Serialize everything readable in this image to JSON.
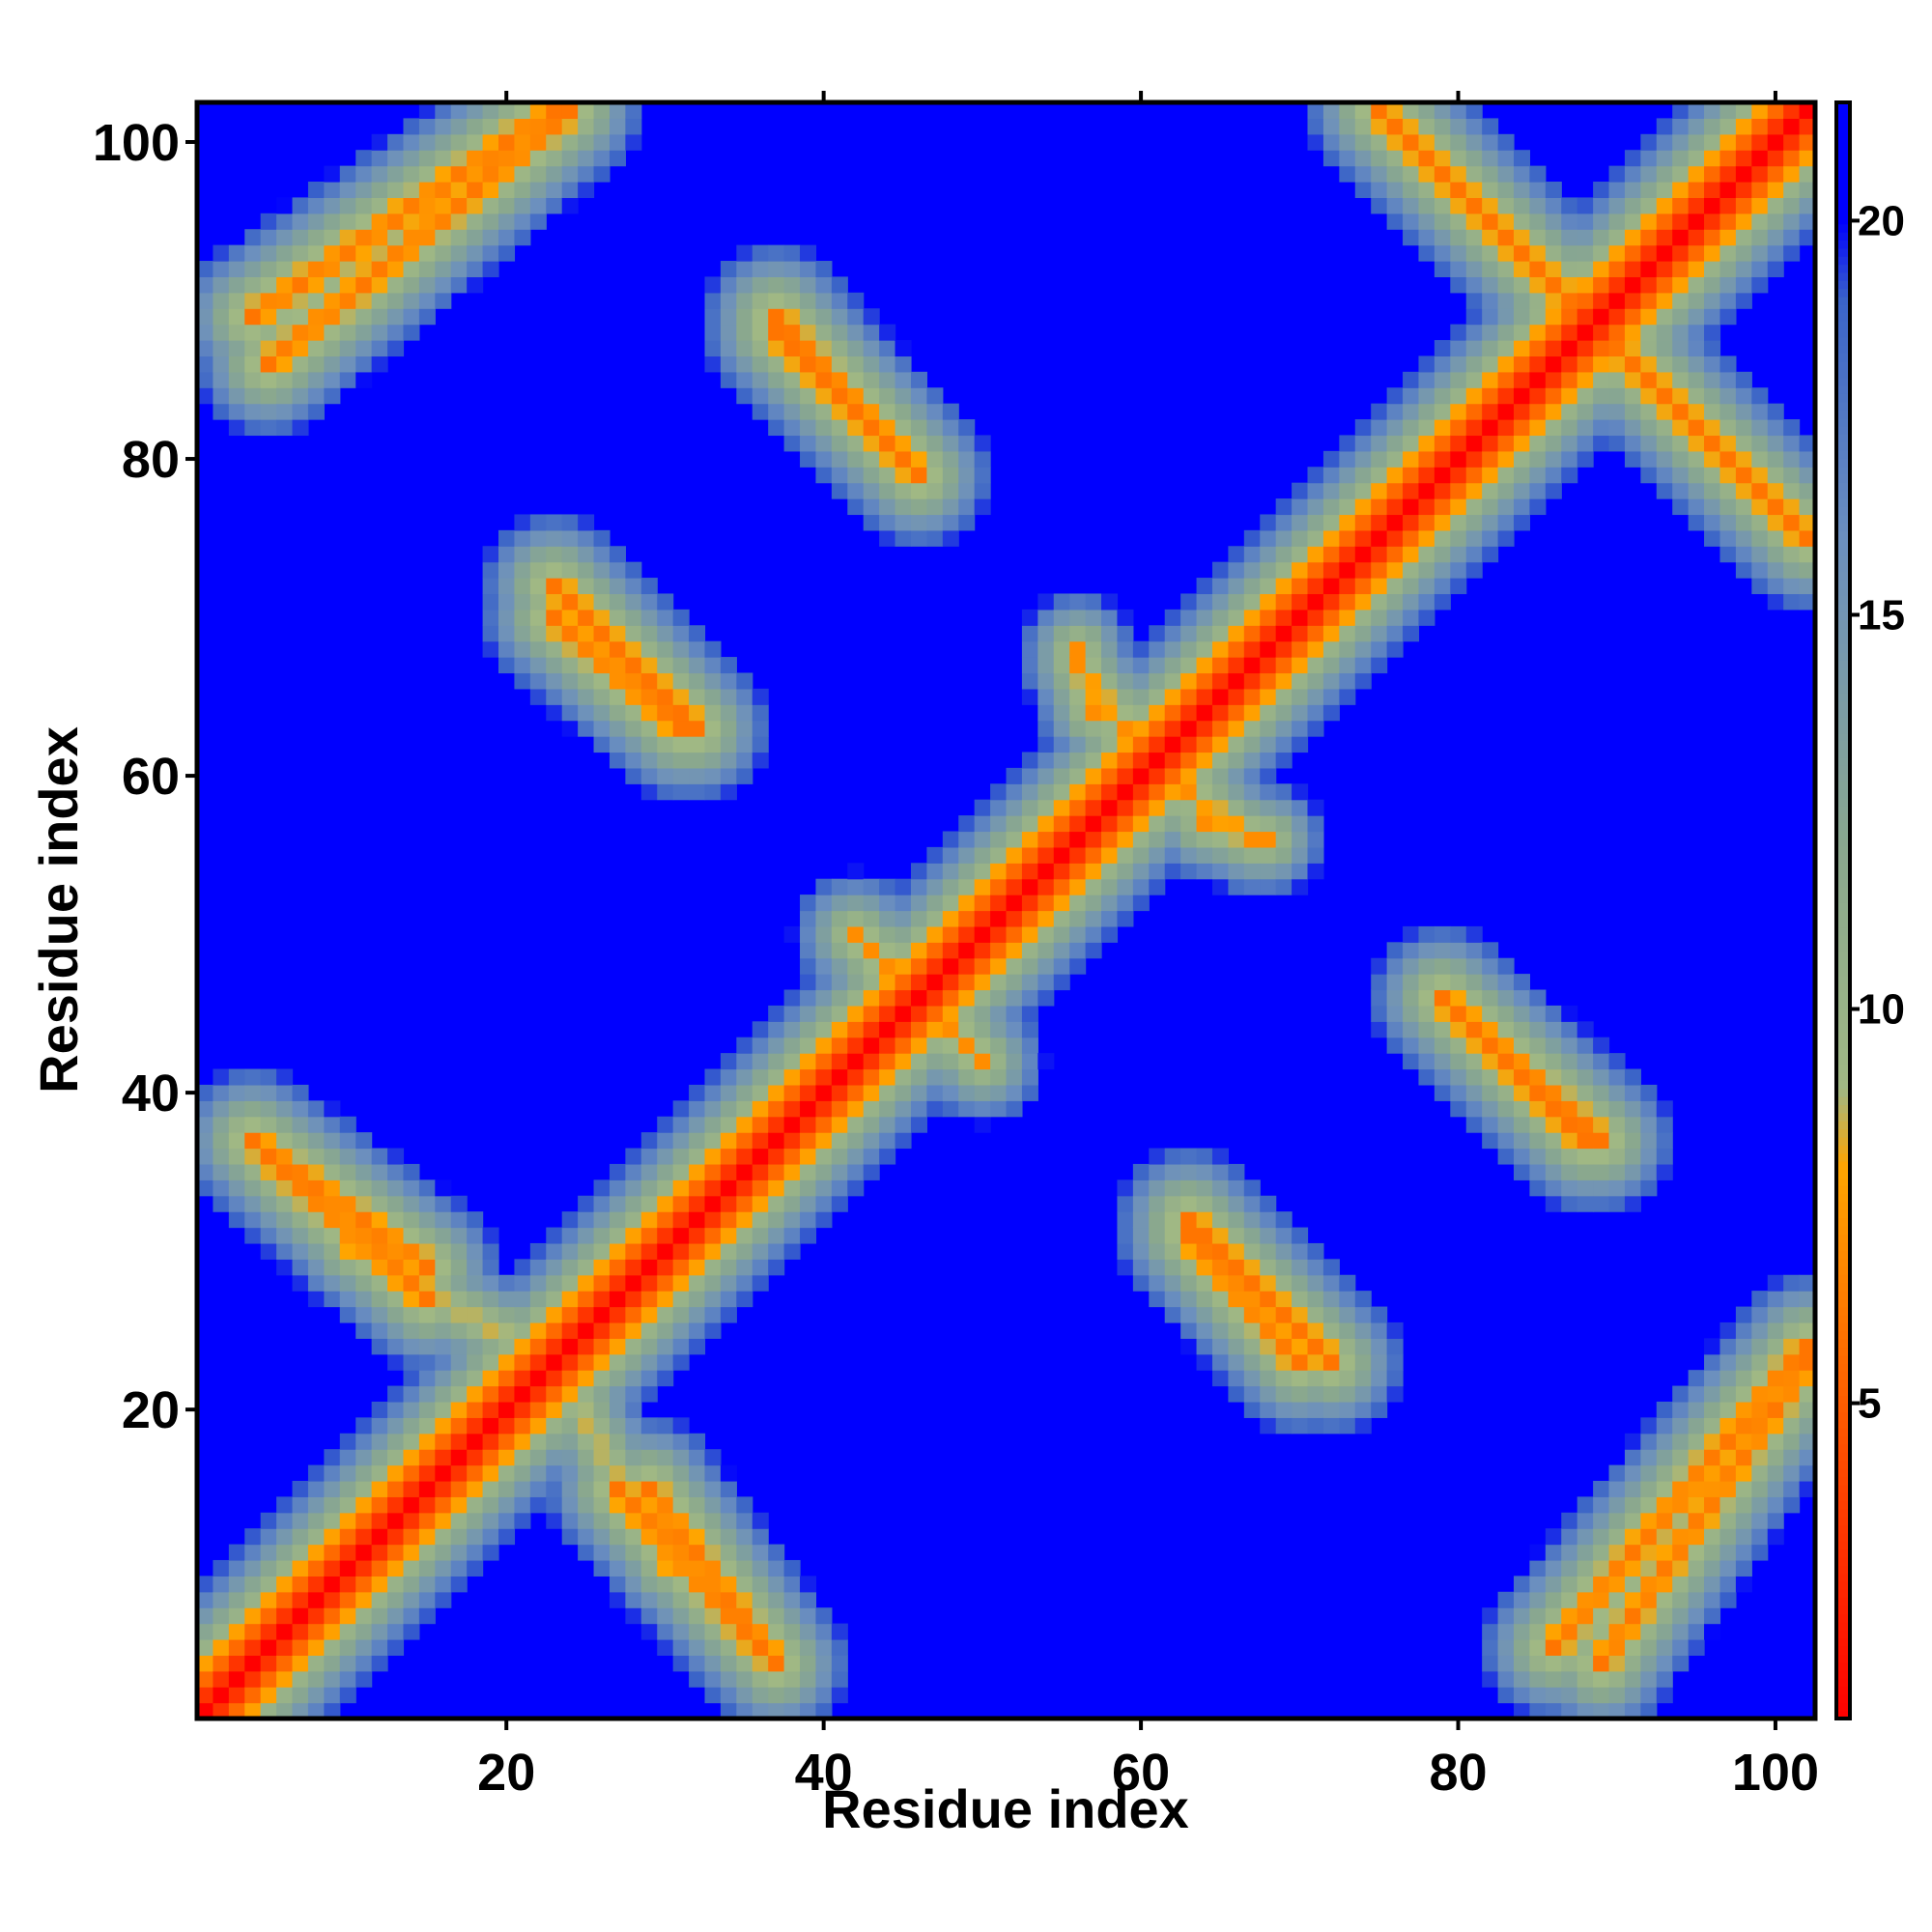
{
  "chart_data": {
    "type": "heatmap",
    "title": "",
    "xlabel": "Residue index",
    "ylabel": "Residue index",
    "n_residues": 102,
    "x_range": [
      1,
      102
    ],
    "y_range": [
      1,
      102
    ],
    "x_ticks": [
      20,
      40,
      60,
      80,
      100
    ],
    "y_ticks": [
      20,
      40,
      60,
      80,
      100
    ],
    "colorbar": {
      "range": [
        1,
        21.5
      ],
      "ticks": [
        5,
        10,
        15,
        20
      ],
      "stops": [
        {
          "value": 1,
          "color": "#ff0000"
        },
        {
          "value": 4,
          "color": "#ff4500"
        },
        {
          "value": 8,
          "color": "#ffa500"
        },
        {
          "value": 9,
          "color": "#a0b884"
        },
        {
          "value": 12,
          "color": "#8aa88e"
        },
        {
          "value": 16,
          "color": "#6b8fbf"
        },
        {
          "value": 19,
          "color": "#3a63c8"
        },
        {
          "value": 20,
          "color": "#0000ff"
        }
      ]
    },
    "background_value": 21.5,
    "matrix_encoding": "symmetric distance map; value at (i, j) is the minimum over the listed bands of (base + slope * perpendicular distance to the band), capped at background_value",
    "bands": [
      {
        "x1": 1,
        "y1": 1,
        "x2": 102,
        "y2": 102,
        "base": 1,
        "slope": 3.2
      },
      {
        "x1": 4,
        "y1": 89,
        "x2": 23,
        "y2": 102,
        "base": 6,
        "slope": 3.0
      },
      {
        "x1": 37,
        "y1": 88,
        "x2": 46,
        "y2": 79,
        "base": 6,
        "slope": 3.0
      },
      {
        "x1": 23,
        "y1": 72,
        "x2": 32,
        "y2": 63,
        "base": 6,
        "slope": 3.0
      },
      {
        "x1": 4,
        "y1": 37,
        "x2": 15,
        "y2": 29,
        "base": 6,
        "slope": 3.0
      },
      {
        "x1": 27,
        "y1": 15,
        "x2": 36,
        "y2": 5,
        "base": 6,
        "slope": 3.0
      },
      {
        "x1": 76,
        "y1": 101,
        "x2": 88,
        "y2": 89,
        "base": 6,
        "slope": 3.0
      },
      {
        "x1": 88,
        "y1": 89,
        "x2": 102,
        "y2": 75,
        "base": 6,
        "slope": 3.0
      },
      {
        "x1": 63,
        "y1": 31,
        "x2": 70,
        "y2": 23,
        "base": 6,
        "slope": 3.0
      },
      {
        "x1": 79,
        "y1": 46,
        "x2": 89,
        "y2": 37,
        "base": 6,
        "slope": 3.0
      },
      {
        "x1": 86,
        "y1": 5,
        "x2": 102,
        "y2": 24,
        "base": 6,
        "slope": 3.0
      },
      {
        "x1": 22,
        "y1": 25,
        "x2": 30,
        "y2": 10,
        "base": 8,
        "slope": 3.2
      },
      {
        "x1": 43,
        "y1": 49,
        "x2": 50,
        "y2": 42,
        "base": 7,
        "slope": 3.2
      },
      {
        "x1": 63,
        "y1": 59,
        "x2": 67,
        "y2": 56,
        "base": 7,
        "slope": 3.5
      },
      {
        "x1": 56,
        "y1": 68,
        "x2": 57,
        "y2": 64,
        "base": 7,
        "slope": 3.5
      }
    ]
  }
}
